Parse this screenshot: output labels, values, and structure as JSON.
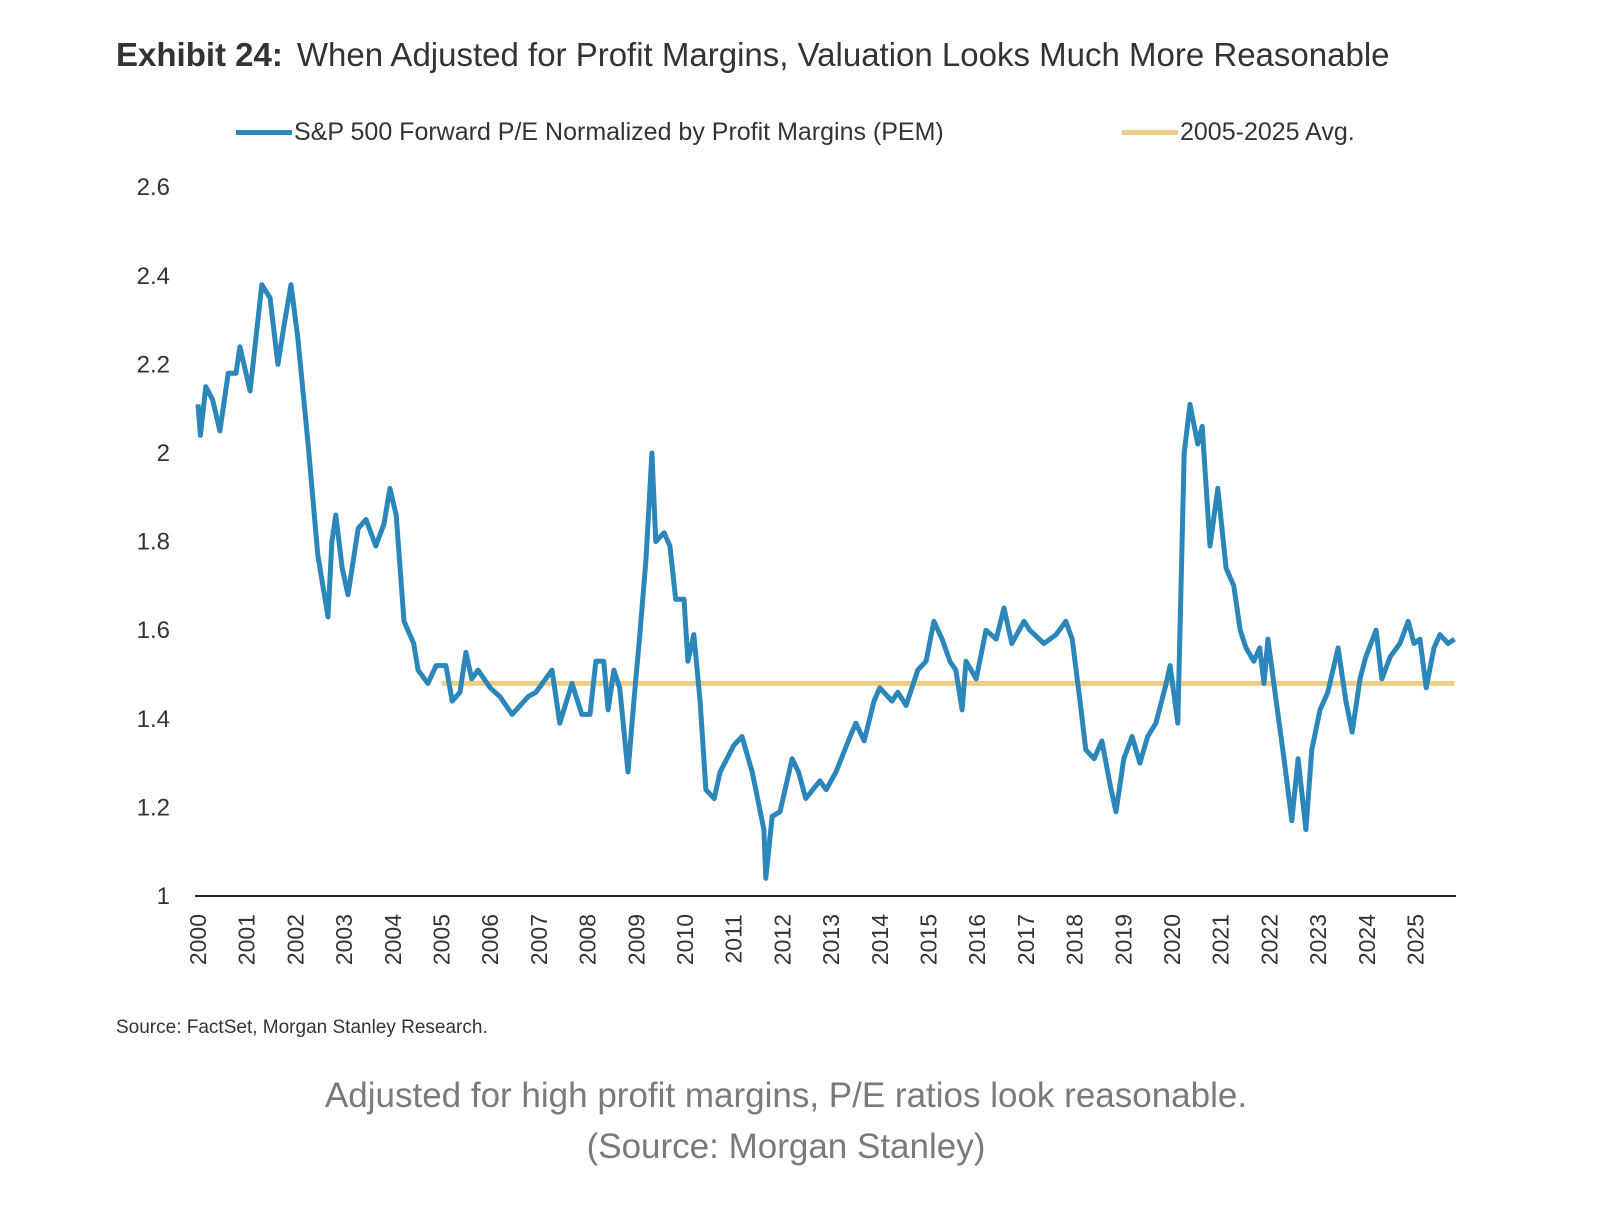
{
  "title": {
    "exhibit": "Exhibit 24:",
    "text": "When Adjusted for Profit Margins, Valuation Looks Much More Reasonable"
  },
  "source": "Source: FactSet, Morgan Stanley Research.",
  "caption": {
    "line1": "Adjusted for high profit margins, P/E ratios look reasonable.",
    "line2": "(Source: Morgan Stanley)"
  },
  "colors": {
    "series": "#2b86ba",
    "average": "#efcd85",
    "axis": "#222222"
  },
  "chart_data": {
    "type": "line",
    "title": "When Adjusted for Profit Margins, Valuation Looks Much More Reasonable",
    "xlabel": "",
    "ylabel": "",
    "xlim": [
      2000,
      2025.8
    ],
    "ylim": [
      1,
      2.6
    ],
    "yticks": [
      "1",
      "1.2",
      "1.4",
      "1.6",
      "1.8",
      "2",
      "2.2",
      "2.4",
      "2.6"
    ],
    "xticks": [
      "2000",
      "2001",
      "2002",
      "2003",
      "2004",
      "2005",
      "2006",
      "2007",
      "2008",
      "2009",
      "2010",
      "2011",
      "2012",
      "2013",
      "2014",
      "2015",
      "2016",
      "2017",
      "2018",
      "2019",
      "2020",
      "2021",
      "2022",
      "2023",
      "2024",
      "2025"
    ],
    "grid": false,
    "legend_position": "top",
    "series": [
      {
        "name": "S&P 500 Forward P/E Normalized by Profit Margins (PEM)",
        "x": [
          2000.0,
          2000.05,
          2000.16,
          2000.3,
          2000.45,
          2000.62,
          2000.78,
          2000.86,
          2001.07,
          2001.31,
          2001.48,
          2001.64,
          2001.77,
          2001.91,
          2002.05,
          2002.26,
          2002.46,
          2002.67,
          2002.75,
          2002.83,
          2002.96,
          2003.08,
          2003.29,
          2003.45,
          2003.65,
          2003.82,
          2003.94,
          2004.07,
          2004.23,
          2004.43,
          2004.52,
          2004.72,
          2004.89,
          2005.09,
          2005.22,
          2005.38,
          2005.5,
          2005.62,
          2005.75,
          2006.0,
          2006.2,
          2006.45,
          2006.78,
          2006.94,
          2007.27,
          2007.43,
          2007.68,
          2007.88,
          2008.05,
          2008.17,
          2008.33,
          2008.42,
          2008.54,
          2008.66,
          2008.83,
          2008.95,
          2009.08,
          2009.2,
          2009.32,
          2009.4,
          2009.57,
          2009.69,
          2009.81,
          2009.98,
          2010.06,
          2010.18,
          2010.31,
          2010.43,
          2010.6,
          2010.72,
          2011.0,
          2011.17,
          2011.38,
          2011.62,
          2011.66,
          2011.79,
          2011.95,
          2012.2,
          2012.33,
          2012.48,
          2012.77,
          2012.9,
          2013.1,
          2013.39,
          2013.51,
          2013.68,
          2013.88,
          2014.0,
          2014.25,
          2014.37,
          2014.54,
          2014.66,
          2014.78,
          2014.95,
          2015.11,
          2015.28,
          2015.44,
          2015.56,
          2015.69,
          2015.77,
          2015.98,
          2016.18,
          2016.39,
          2016.55,
          2016.71,
          2016.96,
          2017.08,
          2017.37,
          2017.62,
          2017.82,
          2017.95,
          2018.11,
          2018.23,
          2018.4,
          2018.56,
          2018.73,
          2018.85,
          2019.01,
          2019.18,
          2019.34,
          2019.5,
          2019.67,
          2019.88,
          2019.96,
          2020.12,
          2020.25,
          2020.37,
          2020.53,
          2020.62,
          2020.78,
          2020.94,
          2021.11,
          2021.27,
          2021.4,
          2021.52,
          2021.68,
          2021.8,
          2021.89,
          2021.97,
          2022.14,
          2022.3,
          2022.46,
          2022.59,
          2022.75,
          2022.87,
          2023.04,
          2023.2,
          2023.41,
          2023.57,
          2023.7,
          2023.86,
          2023.98,
          2024.19,
          2024.31,
          2024.48,
          2024.68,
          2024.85,
          2024.97,
          2025.09,
          2025.22,
          2025.38,
          2025.5,
          2025.67,
          2025.8
        ],
        "values": [
          2.11,
          2.04,
          2.15,
          2.12,
          2.05,
          2.18,
          2.18,
          2.24,
          2.14,
          2.38,
          2.35,
          2.2,
          2.29,
          2.38,
          2.26,
          2.02,
          1.77,
          1.63,
          1.8,
          1.86,
          1.74,
          1.68,
          1.83,
          1.85,
          1.79,
          1.84,
          1.92,
          1.86,
          1.62,
          1.57,
          1.51,
          1.48,
          1.52,
          1.52,
          1.44,
          1.46,
          1.55,
          1.49,
          1.51,
          1.47,
          1.45,
          1.41,
          1.45,
          1.46,
          1.51,
          1.39,
          1.48,
          1.41,
          1.41,
          1.53,
          1.53,
          1.42,
          1.51,
          1.47,
          1.28,
          1.44,
          1.6,
          1.76,
          2.0,
          1.8,
          1.82,
          1.79,
          1.67,
          1.67,
          1.53,
          1.59,
          1.44,
          1.24,
          1.22,
          1.28,
          1.34,
          1.36,
          1.28,
          1.15,
          1.04,
          1.18,
          1.19,
          1.31,
          1.28,
          1.22,
          1.26,
          1.24,
          1.28,
          1.36,
          1.39,
          1.35,
          1.44,
          1.47,
          1.44,
          1.46,
          1.43,
          1.47,
          1.51,
          1.53,
          1.62,
          1.58,
          1.53,
          1.51,
          1.42,
          1.53,
          1.49,
          1.6,
          1.58,
          1.65,
          1.57,
          1.62,
          1.6,
          1.57,
          1.59,
          1.62,
          1.58,
          1.44,
          1.33,
          1.31,
          1.35,
          1.25,
          1.19,
          1.31,
          1.36,
          1.3,
          1.36,
          1.39,
          1.48,
          1.52,
          1.39,
          2.0,
          2.11,
          2.02,
          2.06,
          1.79,
          1.92,
          1.74,
          1.7,
          1.6,
          1.56,
          1.53,
          1.56,
          1.48,
          1.58,
          1.44,
          1.31,
          1.17,
          1.31,
          1.15,
          1.33,
          1.42,
          1.46,
          1.56,
          1.44,
          1.37,
          1.49,
          1.54,
          1.6,
          1.49,
          1.54,
          1.57,
          1.62,
          1.57,
          1.58,
          1.47,
          1.56,
          1.59,
          1.57,
          1.58
        ]
      },
      {
        "name": "2005-2025 Avg.",
        "x": [
          2005.0,
          2025.8
        ],
        "values": [
          1.48,
          1.48
        ]
      }
    ]
  }
}
